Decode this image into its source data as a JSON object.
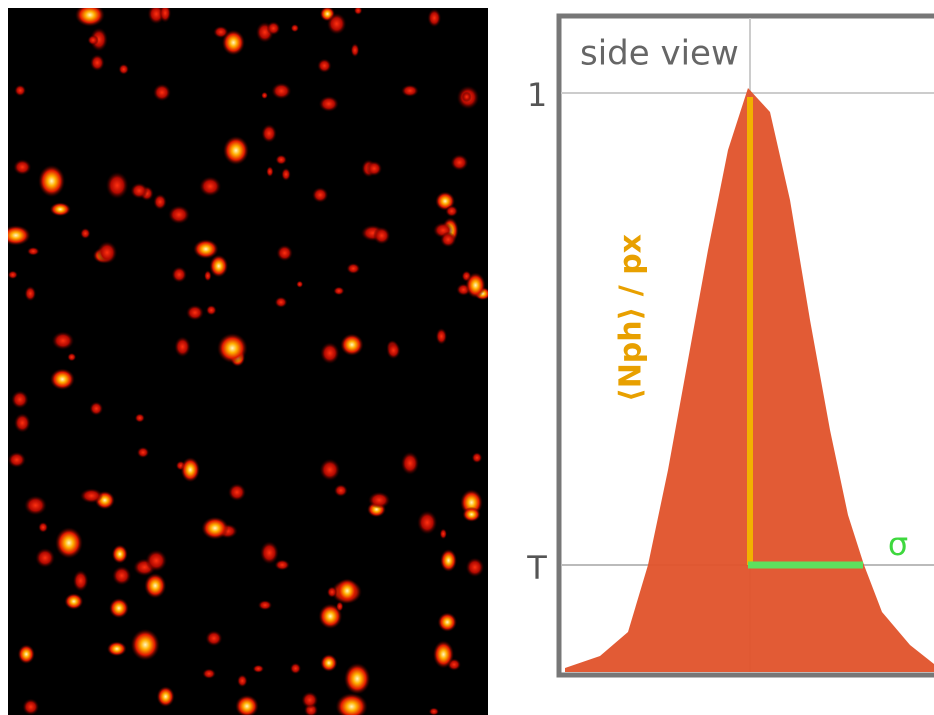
{
  "panel_title": "side view",
  "axis": {
    "top_label": "1",
    "threshold_label": "T"
  },
  "peak_label": "⟨Nph⟩ / px",
  "width_label": "σ"
}
